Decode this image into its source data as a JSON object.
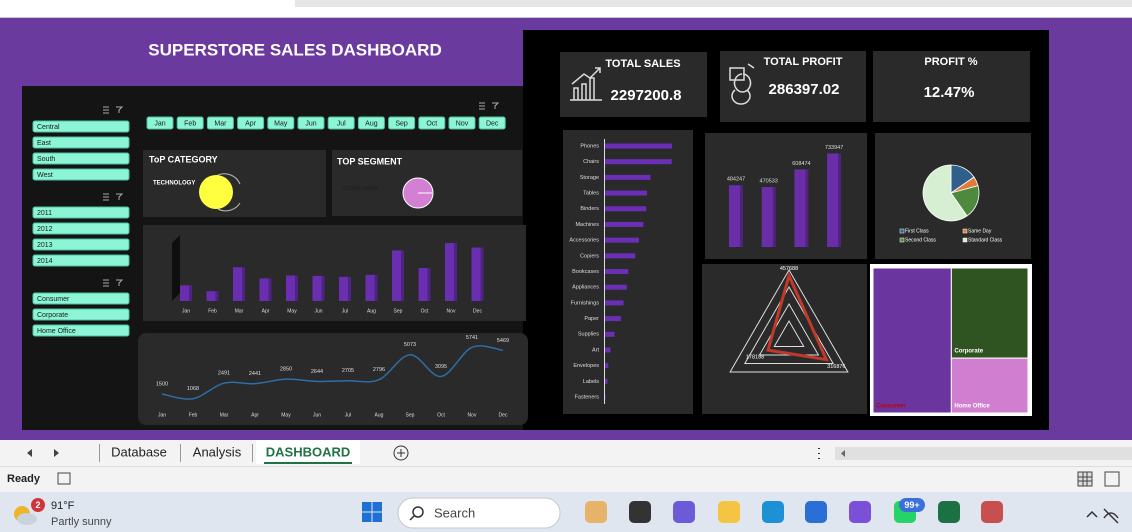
{
  "dashboard": {
    "title": "SUPERSTORE SALES DASHBOARD",
    "kpis": [
      {
        "label": "TOTAL SALES",
        "value": 2297200.8
      },
      {
        "label": "TOTAL PROFIT",
        "value": 286397.02
      },
      {
        "label": "PROFIT %",
        "value": "12.47%"
      }
    ],
    "slicers": {
      "regions": [
        "Central",
        "East",
        "South",
        "West"
      ],
      "years": [
        2011,
        2012,
        2013,
        2014
      ],
      "segments": [
        "Consumer",
        "Corporate",
        "Home Office"
      ],
      "months": [
        "Jan",
        "Feb",
        "Mar",
        "Apr",
        "May",
        "Jun",
        "Jul",
        "Aug",
        "Sep",
        "Oct",
        "Nov",
        "Dec"
      ]
    },
    "top_category": {
      "title": "ToP CATEGORY",
      "value": "TECHNOLOGY"
    },
    "top_segment": {
      "title": "TOP  SEGMENT",
      "value": "CONSUMER"
    }
  },
  "chart_data": [
    {
      "type": "bar",
      "categories": [
        "Jan",
        "Feb",
        "Mar",
        "Apr",
        "May",
        "Jun",
        "Jul",
        "Aug",
        "Sep",
        "Oct",
        "Nov",
        "Dec"
      ],
      "values": [
        94925,
        59751,
        205005,
        137762,
        155029,
        152718,
        147238,
        159044,
        307650,
        200323,
        352461,
        325294
      ],
      "ylim": [
        0,
        365000
      ],
      "color": "#6a2fb0"
    },
    {
      "type": "line",
      "categories": [
        "Jan",
        "Feb",
        "Mar",
        "Apr",
        "May",
        "Jun",
        "Jul",
        "Aug",
        "Sep",
        "Oct",
        "Nov",
        "Dec"
      ],
      "values": [
        1500,
        1068,
        2491,
        2441,
        2850,
        2644,
        2705,
        2796,
        5073,
        3095,
        5741,
        5469
      ],
      "ylim": [
        500,
        6500
      ],
      "color": "#2e6ea6",
      "data_labels": true
    },
    {
      "type": "bar",
      "orientation": "horizontal",
      "categories": [
        "Phones",
        "Chairs",
        "Storage",
        "Tables",
        "Binders",
        "Machines",
        "Accessories",
        "Copiers",
        "Bookcases",
        "Appliances",
        "Furnishings",
        "Paper",
        "Supplies",
        "Art",
        "Envelopes",
        "Labels",
        "Fasteners"
      ],
      "values": [
        330007,
        328449,
        223844,
        206966,
        203413,
        189239,
        167380,
        149528,
        114880,
        107532,
        91705,
        78479,
        46674,
        27119,
        16476,
        12486,
        3024
      ],
      "xlim": [
        0,
        345000
      ],
      "color": "#6b2fb5"
    },
    {
      "type": "bar",
      "values": [
        484247,
        470533,
        608474,
        733947
      ],
      "ylim": [
        0,
        800000
      ],
      "color": "#6a2fa8",
      "data_labels": true
    },
    {
      "type": "pie",
      "categories": [
        "First Class",
        "Same Day",
        "Second Class",
        "Standard Class"
      ],
      "values": [
        15.4,
        5.4,
        19.5,
        59.7
      ],
      "colors": [
        "#2f5f8a",
        "#e07b39",
        "#4e8a3e",
        "#d6efd2"
      ]
    },
    {
      "type": "radar",
      "values": [
        457688,
        316876,
        178188
      ],
      "rlim": [
        0,
        500000
      ],
      "color": "#c0392b",
      "data_labels": true
    },
    {
      "type": "treemap",
      "categories": [
        "Consumer",
        "Corporate",
        "Home Office"
      ],
      "values": [
        1161401,
        706146,
        429653
      ],
      "colors": [
        "#6b35a0",
        "#2f5421",
        "#d07fd0"
      ]
    }
  ],
  "ui": {
    "sheet_tabs": [
      "Database",
      "Analysis",
      "DASHBOARD"
    ],
    "status": "Ready",
    "weather": {
      "badge": 2,
      "temperature": "91°F",
      "condition": "Partly sunny"
    },
    "search": "Search",
    "notification_badge": "99+"
  }
}
